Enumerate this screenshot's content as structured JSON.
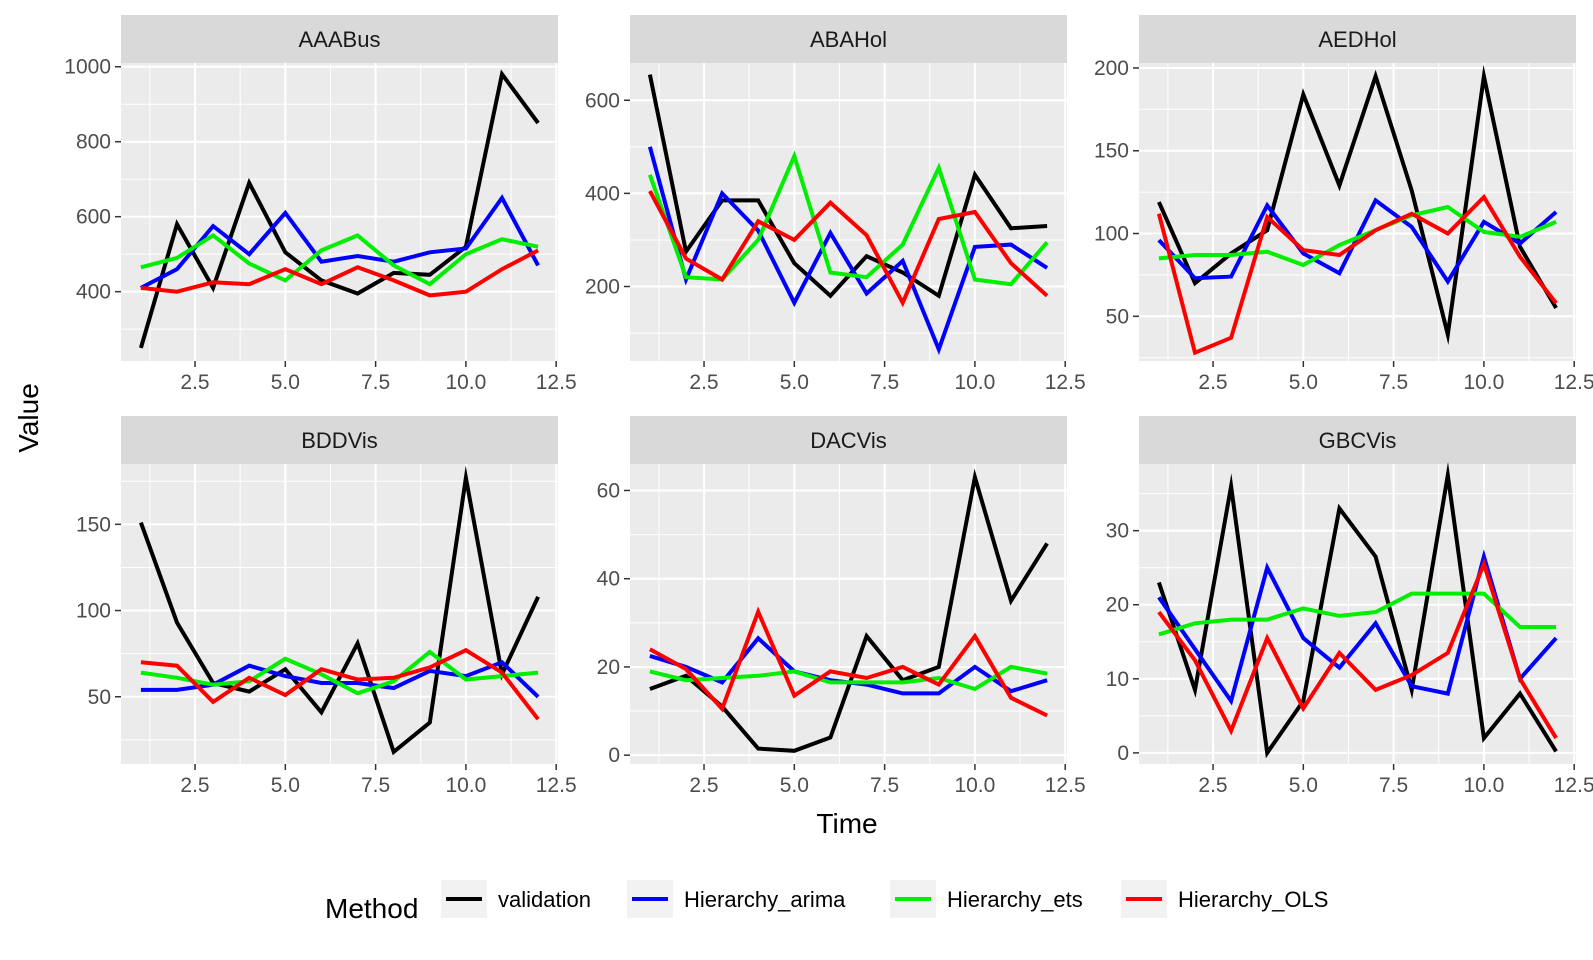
{
  "chart_data": {
    "type": "line",
    "xlabel": "Time",
    "ylabel": "Value",
    "legend": {
      "title": "Method",
      "position": "bottom",
      "entries": [
        {
          "name": "validation",
          "color": "#000000"
        },
        {
          "name": "Hierarchy_arima",
          "color": "#0000FF"
        },
        {
          "name": "Hierarchy_ets",
          "color": "#00EE00"
        },
        {
          "name": "Hierarchy_OLS",
          "color": "#FF0000"
        }
      ]
    },
    "grid": true,
    "x": [
      1,
      2,
      3,
      4,
      5,
      6,
      7,
      8,
      9,
      10,
      11,
      12
    ],
    "xlim": [
      0.45,
      12.55
    ],
    "x_ticks": [
      2.5,
      5.0,
      7.5,
      10.0,
      12.5
    ],
    "x_tick_labels": [
      "2.5",
      "5.0",
      "7.5",
      "10.0",
      "12.5"
    ],
    "panels": [
      {
        "title": "AAABus",
        "ylim": [
          215,
          1010
        ],
        "y_ticks": [
          400,
          600,
          800,
          1000
        ],
        "y_tick_labels": [
          "400",
          "600",
          "800",
          "1000"
        ],
        "series": [
          {
            "name": "validation",
            "values": [
              250,
              580,
              410,
              690,
              505,
              430,
              395,
              450,
              445,
              520,
              980,
              850
            ]
          },
          {
            "name": "Hierarchy_arima",
            "values": [
              410,
              460,
              575,
              500,
              610,
              480,
              495,
              480,
              505,
              515,
              650,
              470
            ]
          },
          {
            "name": "Hierarchy_ets",
            "values": [
              465,
              490,
              550,
              475,
              430,
              510,
              550,
              470,
              420,
              500,
              540,
              520
            ]
          },
          {
            "name": "Hierarchy_OLS",
            "values": [
              410,
              400,
              425,
              420,
              460,
              420,
              465,
              430,
              390,
              400,
              460,
              510
            ]
          }
        ]
      },
      {
        "title": "ABAHol",
        "ylim": [
          40,
          680
        ],
        "y_ticks": [
          200,
          400,
          600
        ],
        "y_tick_labels": [
          "200",
          "400",
          "600"
        ],
        "series": [
          {
            "name": "validation",
            "values": [
              655,
              275,
              385,
              385,
              250,
              180,
              265,
              230,
              180,
              440,
              325,
              330
            ]
          },
          {
            "name": "Hierarchy_arima",
            "values": [
              500,
              215,
              400,
              320,
              165,
              315,
              185,
              255,
              65,
              285,
              290,
              240
            ]
          },
          {
            "name": "Hierarchy_ets",
            "values": [
              440,
              220,
              215,
              300,
              480,
              230,
              220,
              290,
              455,
              215,
              205,
              295
            ]
          },
          {
            "name": "Hierarchy_OLS",
            "values": [
              405,
              260,
              215,
              340,
              300,
              380,
              310,
              165,
              345,
              360,
              250,
              180
            ]
          }
        ]
      },
      {
        "title": "AEDHol",
        "ylim": [
          23,
          203
        ],
        "y_ticks": [
          50,
          100,
          150,
          200
        ],
        "y_tick_labels": [
          "50",
          "100",
          "150",
          "200"
        ],
        "series": [
          {
            "name": "validation",
            "values": [
              119,
              70,
              88,
              102,
              184,
              129,
              195,
              126,
              39,
              195,
              92,
              55
            ]
          },
          {
            "name": "Hierarchy_arima",
            "values": [
              96,
              73,
              74,
              117,
              88,
              76,
              120,
              104,
              71,
              107,
              94,
              113
            ]
          },
          {
            "name": "Hierarchy_ets",
            "values": [
              85,
              87,
              87,
              89,
              81,
              93,
              102,
              111,
              116,
              101,
              98,
              107
            ]
          },
          {
            "name": "Hierarchy_OLS",
            "values": [
              112,
              28,
              37,
              110,
              90,
              87,
              102,
              112,
              100,
              122,
              86,
              58
            ]
          }
        ]
      },
      {
        "title": "BDDVis",
        "ylim": [
          11,
          185
        ],
        "y_ticks": [
          50,
          100,
          150
        ],
        "y_tick_labels": [
          "50",
          "100",
          "150"
        ],
        "series": [
          {
            "name": "validation",
            "values": [
              151,
              93,
              58,
              53,
              66,
              41,
              81,
              18,
              35,
              177,
              63,
              108
            ]
          },
          {
            "name": "Hierarchy_arima",
            "values": [
              54,
              54,
              57,
              68,
              62,
              58,
              58,
              55,
              65,
              62,
              70,
              50
            ]
          },
          {
            "name": "Hierarchy_ets",
            "values": [
              64,
              61,
              57,
              59,
              72,
              63,
              52,
              59,
              76,
              60,
              62,
              64
            ]
          },
          {
            "name": "Hierarchy_OLS",
            "values": [
              70,
              68,
              47,
              61,
              51,
              66,
              60,
              61,
              67,
              77,
              64,
              37
            ]
          }
        ]
      },
      {
        "title": "DACVis",
        "ylim": [
          -2,
          66
        ],
        "y_ticks": [
          0,
          20,
          40,
          60
        ],
        "y_tick_labels": [
          "0",
          "20",
          "40",
          "60"
        ],
        "series": [
          {
            "name": "validation",
            "values": [
              15,
              18,
              11,
              1.5,
              1,
              4,
              27,
              17,
              20,
              63,
              35,
              48
            ]
          },
          {
            "name": "Hierarchy_arima",
            "values": [
              22.5,
              20,
              16.5,
              26.5,
              19,
              17,
              16,
              14,
              14,
              20,
              14.5,
              17
            ]
          },
          {
            "name": "Hierarchy_ets",
            "values": [
              19,
              17,
              17.5,
              18,
              19,
              16.5,
              16.5,
              16.5,
              17.5,
              15,
              20,
              18.5
            ]
          },
          {
            "name": "Hierarchy_OLS",
            "values": [
              24,
              19.5,
              10.5,
              32.5,
              13.5,
              19,
              17.5,
              20,
              16,
              27,
              13,
              9
            ]
          }
        ]
      },
      {
        "title": "GBCVis",
        "ylim": [
          -1.5,
          39
        ],
        "y_ticks": [
          0,
          10,
          20,
          30
        ],
        "y_tick_labels": [
          "0",
          "10",
          "20",
          "30"
        ],
        "series": [
          {
            "name": "validation",
            "values": [
              23,
              8.5,
              36,
              0,
              7,
              33,
              26.5,
              8.5,
              37.5,
              2,
              8,
              0.2
            ]
          },
          {
            "name": "Hierarchy_arima",
            "values": [
              21,
              14,
              7,
              25,
              15.5,
              11.5,
              17.5,
              9,
              8,
              26.5,
              10,
              15.5
            ]
          },
          {
            "name": "Hierarchy_ets",
            "values": [
              16,
              17.5,
              18,
              18,
              19.5,
              18.5,
              19,
              21.5,
              21.5,
              21.5,
              17,
              17
            ]
          },
          {
            "name": "Hierarchy_OLS",
            "values": [
              19,
              12.5,
              3,
              15.5,
              6,
              13.5,
              8.5,
              10.5,
              13.5,
              25.5,
              10,
              2
            ]
          }
        ]
      }
    ]
  }
}
